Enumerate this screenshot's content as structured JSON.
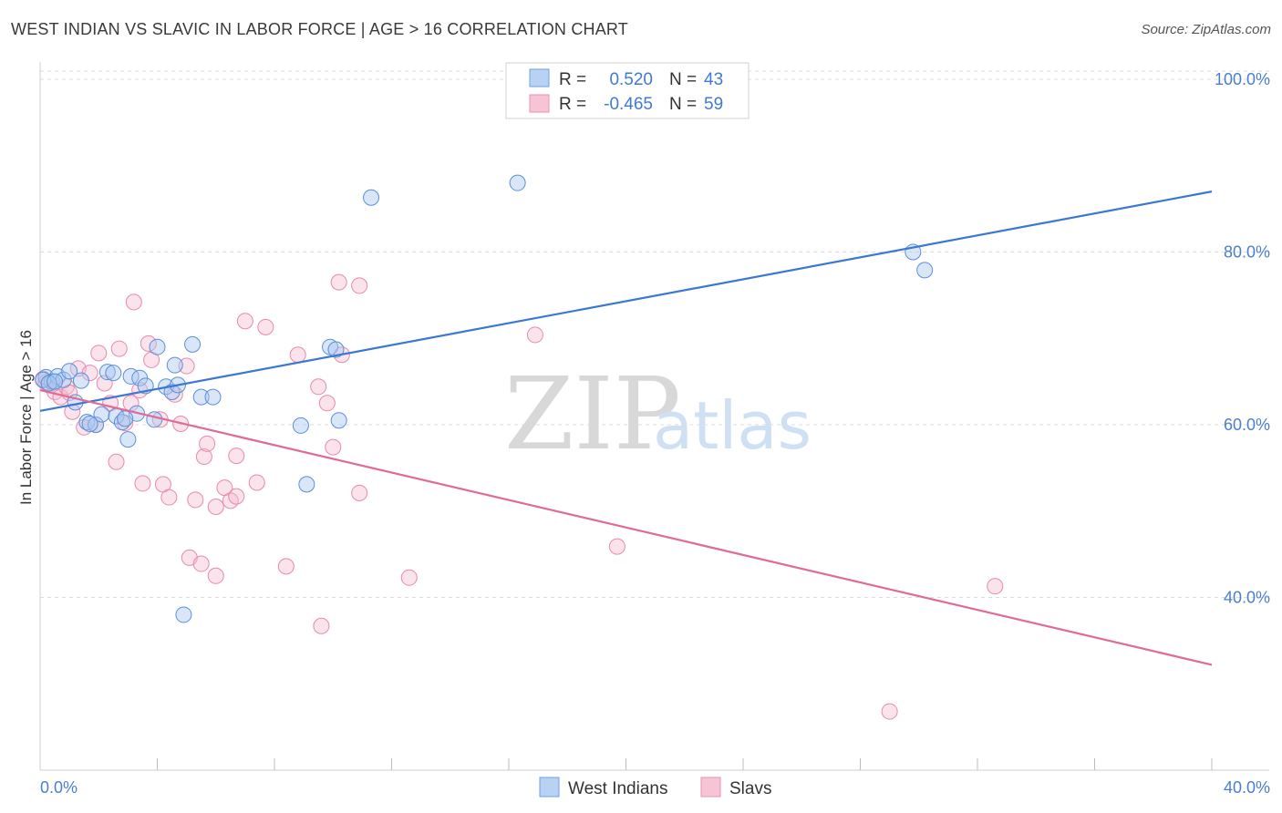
{
  "title": "WEST INDIAN VS SLAVIC IN LABOR FORCE | AGE > 16 CORRELATION CHART",
  "source": "Source: ZipAtlas.com",
  "watermark": {
    "zip": "ZIP",
    "atlas": "atlas"
  },
  "colors": {
    "blue": "#3a78d4",
    "blue_fill": "#a9c8f0",
    "pink": "#e06a98",
    "pink_fill": "#f4b8cd",
    "grid": "#dcdcdc",
    "axis_text": "#4a7fcf"
  },
  "legend": {
    "rows": [
      {
        "r_label": "R =",
        "r_value": "0.520",
        "n_label": "N =",
        "n_value": "43"
      },
      {
        "r_label": "R =",
        "r_value": "-0.465",
        "n_label": "N =",
        "n_value": "59"
      }
    ]
  },
  "bottom_legend": [
    "West Indians",
    "Slavs"
  ],
  "chart_data": {
    "type": "scatter",
    "title": "WEST INDIAN VS SLAVIC IN LABOR FORCE | AGE > 16 CORRELATION CHART",
    "ylabel": "In Labor Force | Age > 16",
    "xlabel": "",
    "xlim": [
      0,
      40
    ],
    "ylim": [
      20,
      102
    ],
    "x_ticks": [
      "0.0%",
      "40.0%"
    ],
    "y_ticks": [
      {
        "value": 100,
        "label": "100.0%"
      },
      {
        "value": 80,
        "label": "80.0%"
      },
      {
        "value": 60,
        "label": "60.0%"
      },
      {
        "value": 40,
        "label": "40.0%"
      }
    ],
    "series": [
      {
        "name": "West Indians",
        "r": 0.52,
        "n": 43,
        "trend": {
          "x": [
            0,
            40
          ],
          "y": [
            61.6,
            87.0
          ]
        },
        "points": [
          [
            0.2,
            65.5
          ],
          [
            0.4,
            65.0
          ],
          [
            0.6,
            65.6
          ],
          [
            0.8,
            65.2
          ],
          [
            1.0,
            66.2
          ],
          [
            1.2,
            62.6
          ],
          [
            1.4,
            65.1
          ],
          [
            1.6,
            60.3
          ],
          [
            1.9,
            60.0
          ],
          [
            2.1,
            61.2
          ],
          [
            2.3,
            66.1
          ],
          [
            2.5,
            66.0
          ],
          [
            2.6,
            61.0
          ],
          [
            2.8,
            60.3
          ],
          [
            3.0,
            58.3
          ],
          [
            3.1,
            65.6
          ],
          [
            3.3,
            61.3
          ],
          [
            3.4,
            65.4
          ],
          [
            3.6,
            64.5
          ],
          [
            3.9,
            60.6
          ],
          [
            4.0,
            69.0
          ],
          [
            4.3,
            64.4
          ],
          [
            4.5,
            63.8
          ],
          [
            4.6,
            66.9
          ],
          [
            4.7,
            64.6
          ],
          [
            4.9,
            38.0
          ],
          [
            5.2,
            69.3
          ],
          [
            5.5,
            63.2
          ],
          [
            5.9,
            63.2
          ],
          [
            8.9,
            59.9
          ],
          [
            9.1,
            53.1
          ],
          [
            9.9,
            69.0
          ],
          [
            10.1,
            68.7
          ],
          [
            10.2,
            60.5
          ],
          [
            11.3,
            86.3
          ],
          [
            16.3,
            88.0
          ],
          [
            29.8,
            80.0
          ],
          [
            30.2,
            77.9
          ],
          [
            0.1,
            65.2
          ],
          [
            0.3,
            64.8
          ],
          [
            0.5,
            65.0
          ],
          [
            2.9,
            60.7
          ],
          [
            1.7,
            60.1
          ]
        ]
      },
      {
        "name": "Slavs",
        "r": -0.465,
        "n": 59,
        "trend": {
          "x": [
            0,
            40
          ],
          "y": [
            64.0,
            32.2
          ]
        },
        "points": [
          [
            0.1,
            65.3
          ],
          [
            0.3,
            64.6
          ],
          [
            0.5,
            63.8
          ],
          [
            0.7,
            63.2
          ],
          [
            0.9,
            64.4
          ],
          [
            1.1,
            61.5
          ],
          [
            1.3,
            66.5
          ],
          [
            1.5,
            59.7
          ],
          [
            1.7,
            66.0
          ],
          [
            1.9,
            60.0
          ],
          [
            2.0,
            68.3
          ],
          [
            2.2,
            64.8
          ],
          [
            2.4,
            62.5
          ],
          [
            2.6,
            55.7
          ],
          [
            2.7,
            68.8
          ],
          [
            2.9,
            60.2
          ],
          [
            3.1,
            62.5
          ],
          [
            3.2,
            74.2
          ],
          [
            3.4,
            64.0
          ],
          [
            3.5,
            53.2
          ],
          [
            3.7,
            69.4
          ],
          [
            3.8,
            67.5
          ],
          [
            4.1,
            60.6
          ],
          [
            4.2,
            53.1
          ],
          [
            4.4,
            51.6
          ],
          [
            4.6,
            63.5
          ],
          [
            4.8,
            60.1
          ],
          [
            5.0,
            66.8
          ],
          [
            5.1,
            44.6
          ],
          [
            5.3,
            51.3
          ],
          [
            5.5,
            43.9
          ],
          [
            5.6,
            56.3
          ],
          [
            5.7,
            57.8
          ],
          [
            6.0,
            50.5
          ],
          [
            6.0,
            42.5
          ],
          [
            6.3,
            52.7
          ],
          [
            6.5,
            51.2
          ],
          [
            6.7,
            51.7
          ],
          [
            6.7,
            56.4
          ],
          [
            7.0,
            72.0
          ],
          [
            7.4,
            53.3
          ],
          [
            7.7,
            71.3
          ],
          [
            8.4,
            43.6
          ],
          [
            8.8,
            68.1
          ],
          [
            9.5,
            64.4
          ],
          [
            9.6,
            36.7
          ],
          [
            9.8,
            62.5
          ],
          [
            10.0,
            57.4
          ],
          [
            10.2,
            76.5
          ],
          [
            10.3,
            68.1
          ],
          [
            10.9,
            76.1
          ],
          [
            10.9,
            52.1
          ],
          [
            12.6,
            42.3
          ],
          [
            16.9,
            70.4
          ],
          [
            19.7,
            45.9
          ],
          [
            32.6,
            41.3
          ],
          [
            29.0,
            26.8
          ],
          [
            0.2,
            64.9
          ],
          [
            1.0,
            63.7
          ]
        ]
      }
    ]
  }
}
